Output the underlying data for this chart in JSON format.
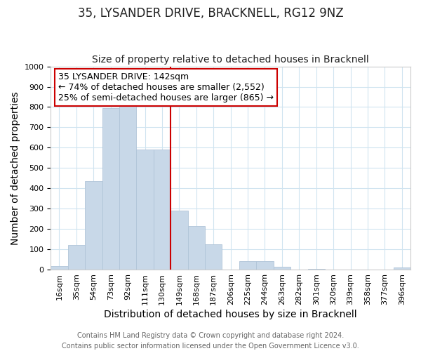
{
  "title": "35, LYSANDER DRIVE, BRACKNELL, RG12 9NZ",
  "subtitle": "Size of property relative to detached houses in Bracknell",
  "xlabel": "Distribution of detached houses by size in Bracknell",
  "ylabel": "Number of detached properties",
  "footer_line1": "Contains HM Land Registry data © Crown copyright and database right 2024.",
  "footer_line2": "Contains public sector information licensed under the Open Government Licence v3.0.",
  "bar_labels": [
    "16sqm",
    "35sqm",
    "54sqm",
    "73sqm",
    "92sqm",
    "111sqm",
    "130sqm",
    "149sqm",
    "168sqm",
    "187sqm",
    "206sqm",
    "225sqm",
    "244sqm",
    "263sqm",
    "282sqm",
    "301sqm",
    "320sqm",
    "339sqm",
    "358sqm",
    "377sqm",
    "396sqm"
  ],
  "bar_values": [
    17,
    120,
    435,
    795,
    808,
    590,
    590,
    290,
    215,
    125,
    0,
    42,
    42,
    15,
    0,
    5,
    0,
    0,
    0,
    0,
    10
  ],
  "bar_color": "#c8d8e8",
  "bar_edge_color": "#b0c4d8",
  "vline_color": "#cc0000",
  "vline_position": 7,
  "ylim": [
    0,
    1000
  ],
  "yticks": [
    0,
    100,
    200,
    300,
    400,
    500,
    600,
    700,
    800,
    900,
    1000
  ],
  "annotation_title": "35 LYSANDER DRIVE: 142sqm",
  "annotation_line1": "← 74% of detached houses are smaller (2,552)",
  "annotation_line2": "25% of semi-detached houses are larger (865) →",
  "annotation_box_color": "#ffffff",
  "annotation_box_edge": "#cc0000",
  "title_fontsize": 12,
  "subtitle_fontsize": 10,
  "axis_label_fontsize": 10,
  "tick_fontsize": 8,
  "annotation_fontsize": 9,
  "footer_fontsize": 7
}
